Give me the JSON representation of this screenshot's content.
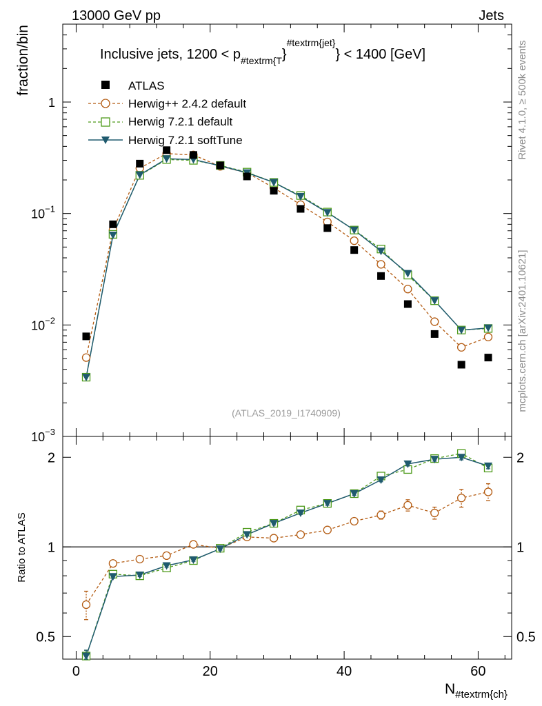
{
  "header": {
    "left": "13000 GeV pp",
    "right": "Jets"
  },
  "side_labels": {
    "upper": "Rivet 4.1.0, ≥ 500k events",
    "lower": "mcplots.cern.ch [arXiv:2401.10621]"
  },
  "analysis_id": "(ATLAS_2019_I1740909)",
  "chart_data": [
    {
      "type": "scatter",
      "panel": "main",
      "title": "Inclusive jets, 1200 < p_{#textrm{T}}^{#textrm{jet}} < 1400 [GeV]",
      "title_parts": {
        "pre": "Inclusive jets, 1200 < p",
        "sub": "#textrm{T",
        "mid": "}",
        "sup": "#textrm{jet}",
        "post": "} < 1400 [GeV]"
      },
      "ylabel": "fraction/bin",
      "yscale": "log",
      "ylim": [
        0.001,
        5
      ],
      "xlim": [
        -2,
        65
      ],
      "ytick_labels": [
        {
          "value": 1,
          "mantissa": "1",
          "exp": ""
        },
        {
          "value": 0.1,
          "mantissa": "10",
          "exp": "−1"
        },
        {
          "value": 0.01,
          "mantissa": "10",
          "exp": "−2"
        },
        {
          "value": 0.001,
          "mantissa": "10",
          "exp": "−3"
        }
      ],
      "x": [
        1.5,
        5.5,
        9.5,
        13.5,
        17.5,
        21.5,
        25.5,
        29.5,
        33.5,
        37.5,
        41.5,
        45.5,
        49.5,
        53.5,
        57.5,
        61.5
      ],
      "legend_position": "top-left",
      "series": [
        {
          "name": "ATLAS",
          "style": "data",
          "color": "#000000",
          "values": [
            0.0079,
            0.08,
            0.28,
            0.37,
            0.335,
            0.27,
            0.215,
            0.16,
            0.11,
            0.074,
            0.047,
            0.0275,
            0.0154,
            0.0083,
            0.0044,
            0.0051
          ]
        },
        {
          "name": "Herwig++ 2.4.2 default",
          "style": "circle-dashed",
          "color": "#b35a10",
          "values": [
            0.0051,
            0.071,
            0.255,
            0.345,
            0.335,
            0.265,
            0.232,
            0.17,
            0.12,
            0.084,
            0.057,
            0.035,
            0.021,
            0.0107,
            0.0063,
            0.0078
          ]
        },
        {
          "name": "Herwig 7.2.1 default",
          "style": "square-dashed",
          "color": "#4d9a1a",
          "values": [
            0.0034,
            0.065,
            0.22,
            0.305,
            0.3,
            0.27,
            0.235,
            0.19,
            0.145,
            0.103,
            0.071,
            0.048,
            0.028,
            0.0165,
            0.009,
            0.0093
          ]
        },
        {
          "name": "Herwig 7.2.1 softTune",
          "style": "triangle-solid",
          "color": "#1f5a6e",
          "values": [
            0.0034,
            0.064,
            0.222,
            0.31,
            0.305,
            0.268,
            0.232,
            0.19,
            0.142,
            0.102,
            0.071,
            0.046,
            0.029,
            0.0165,
            0.009,
            0.0094
          ]
        }
      ]
    },
    {
      "type": "scatter",
      "panel": "ratio",
      "ylabel": "Ratio to ATLAS",
      "xlabel": "N_{#textrm{ch}}",
      "xlabel_parts": {
        "main": "N",
        "sub": "#textrm{ch}"
      },
      "yscale": "log",
      "ylim": [
        0.42,
        2.35
      ],
      "xlim": [
        -2,
        65
      ],
      "yticks": [
        0.5,
        1,
        2
      ],
      "ytick_labels": [
        "0.5",
        "1",
        "2"
      ],
      "xticks": [
        0,
        20,
        40,
        60
      ],
      "xtick_labels": [
        "0",
        "20",
        "40",
        "60"
      ],
      "x": [
        1.5,
        5.5,
        9.5,
        13.5,
        17.5,
        21.5,
        25.5,
        29.5,
        33.5,
        37.5,
        41.5,
        45.5,
        49.5,
        53.5,
        57.5,
        61.5
      ],
      "series": [
        {
          "name": "Herwig++ 2.4.2 default",
          "style": "circle-dashed",
          "color": "#b35a10",
          "values": [
            0.64,
            0.88,
            0.91,
            0.935,
            1.02,
            0.99,
            1.08,
            1.07,
            1.1,
            1.14,
            1.22,
            1.28,
            1.38,
            1.3,
            1.46,
            1.53
          ],
          "errors": [
            0.07,
            0.02,
            0.015,
            0.015,
            0.015,
            0.015,
            0.02,
            0.02,
            0.02,
            0.025,
            0.03,
            0.04,
            0.06,
            0.06,
            0.1,
            0.1
          ]
        },
        {
          "name": "Herwig 7.2.1 default",
          "style": "square-dashed",
          "color": "#4d9a1a",
          "values": [
            0.43,
            0.81,
            0.8,
            0.85,
            0.9,
            0.99,
            1.12,
            1.2,
            1.33,
            1.4,
            1.51,
            1.73,
            1.82,
            1.98,
            2.06,
            1.84
          ],
          "errors": [
            0.02,
            0.01,
            0.01,
            0.01,
            0.01,
            0.01,
            0.01,
            0.015,
            0.015,
            0.02,
            0.02,
            0.025,
            0.03,
            0.03,
            0.04,
            0.04
          ]
        },
        {
          "name": "Herwig 7.2.1 softTune",
          "style": "triangle-solid",
          "color": "#1f5a6e",
          "values": [
            0.43,
            0.795,
            0.805,
            0.865,
            0.905,
            0.985,
            1.1,
            1.2,
            1.3,
            1.4,
            1.51,
            1.68,
            1.9,
            1.97,
            2.0,
            1.87
          ],
          "errors": [
            0.02,
            0.01,
            0.01,
            0.01,
            0.01,
            0.01,
            0.01,
            0.015,
            0.015,
            0.02,
            0.02,
            0.025,
            0.03,
            0.03,
            0.04,
            0.04
          ]
        }
      ]
    }
  ]
}
